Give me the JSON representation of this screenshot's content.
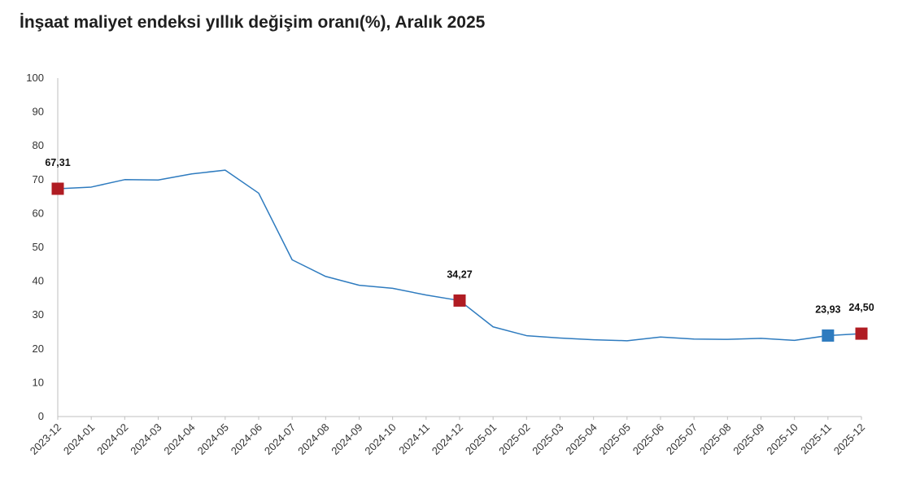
{
  "title": "İnşaat maliyet endeksi yıllık değişim oranı(%), Aralık 2025",
  "colors": {
    "line": "#2e7bbf",
    "marker_highlight": "#b01c23",
    "marker_current": "#2e7bbf",
    "axis": "#bfbfbf"
  },
  "chart_data": {
    "type": "line",
    "title": "İnşaat maliyet endeksi yıllık değişim oranı(%), Aralık 2025",
    "xlabel": "",
    "ylabel": "",
    "ylim": [
      0,
      100
    ],
    "yticks": [
      0,
      10,
      20,
      30,
      40,
      50,
      60,
      70,
      80,
      90,
      100
    ],
    "grid": false,
    "categories": [
      "2023-12",
      "2024-01",
      "2024-02",
      "2024-03",
      "2024-04",
      "2024-05",
      "2024-06",
      "2024-07",
      "2024-08",
      "2024-09",
      "2024-10",
      "2024-11",
      "2024-12",
      "2025-01",
      "2025-02",
      "2025-03",
      "2025-04",
      "2025-05",
      "2025-06",
      "2025-07",
      "2025-08",
      "2025-09",
      "2025-10",
      "2025-11",
      "2025-12"
    ],
    "series": [
      {
        "values": [
          67.31,
          67.8,
          70.0,
          69.9,
          71.7,
          72.8,
          66.0,
          46.3,
          41.4,
          38.8,
          37.9,
          35.9,
          34.27,
          26.5,
          23.9,
          23.2,
          22.7,
          22.4,
          23.5,
          22.9,
          22.8,
          23.1,
          22.5,
          23.93,
          24.5
        ]
      }
    ],
    "markers": [
      {
        "category": "2023-12",
        "value": 67.31,
        "label": "67,31",
        "color": "#b01c23"
      },
      {
        "category": "2024-12",
        "value": 34.27,
        "label": "34,27",
        "color": "#b01c23"
      },
      {
        "category": "2025-11",
        "value": 23.93,
        "label": "23,93",
        "color": "#2e7bbf"
      },
      {
        "category": "2025-12",
        "value": 24.5,
        "label": "24,50",
        "color": "#b01c23"
      }
    ]
  }
}
